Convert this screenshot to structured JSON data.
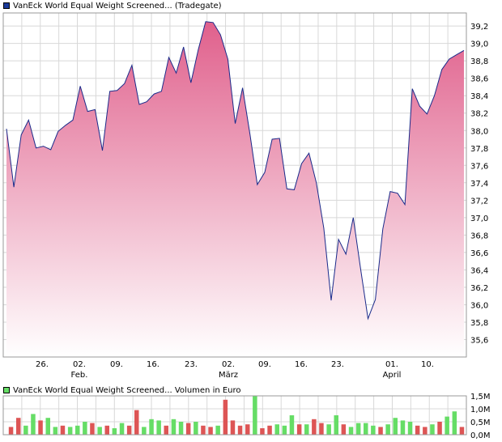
{
  "chart_data": [
    {
      "type": "area",
      "title": "VanEck World Equal Weight Screened... (Tradegate)",
      "series_color": "#1a2a8a",
      "fill_top": "#e0608c",
      "fill_bottom": "#ffffff",
      "ylim": [
        35.4,
        39.35
      ],
      "yticks": [
        "35,6",
        "35,8",
        "36,0",
        "36,2",
        "36,4",
        "36,6",
        "36,8",
        "37,0",
        "37,2",
        "37,4",
        "37,6",
        "37,8",
        "38,0",
        "38,2",
        "38,4",
        "38,6",
        "38,8",
        "39,0",
        "39,2"
      ],
      "xticks": [
        {
          "day": "26.",
          "month": ""
        },
        {
          "day": "02.",
          "month": "Feb."
        },
        {
          "day": "09.",
          "month": ""
        },
        {
          "day": "16.",
          "month": ""
        },
        {
          "day": "23.",
          "month": ""
        },
        {
          "day": "02.",
          "month": "März"
        },
        {
          "day": "09.",
          "month": ""
        },
        {
          "day": "16.",
          "month": ""
        },
        {
          "day": "23.",
          "month": ""
        },
        {
          "day": "01.",
          "month": "April"
        },
        {
          "day": "10.",
          "month": ""
        }
      ],
      "values": [
        38.02,
        37.35,
        37.95,
        38.12,
        37.8,
        37.82,
        37.78,
        37.99,
        38.06,
        38.12,
        38.51,
        38.22,
        38.24,
        37.77,
        38.45,
        38.46,
        38.54,
        38.75,
        38.3,
        38.33,
        38.42,
        38.45,
        38.84,
        38.66,
        38.96,
        38.55,
        38.93,
        39.25,
        39.24,
        39.1,
        38.82,
        38.08,
        38.49,
        37.96,
        37.38,
        37.52,
        37.9,
        37.91,
        37.33,
        37.32,
        37.62,
        37.74,
        37.4,
        36.88,
        36.05,
        36.75,
        36.58,
        37.0,
        36.41,
        35.84,
        36.06,
        36.87,
        37.3,
        37.28,
        37.15,
        38.48,
        38.28,
        38.19,
        38.4,
        38.7,
        38.82,
        38.87,
        38.92
      ]
    },
    {
      "type": "bar",
      "title": "VanEck World Equal Weight Screened... Volumen in Euro",
      "ylim": [
        0,
        1.5
      ],
      "yticks": [
        "0,0M",
        "0,5M",
        "1,0M",
        "1,5M"
      ],
      "up_color": "#66dd66",
      "down_color": "#dd5555",
      "values": [
        0.3,
        0.65,
        0.35,
        0.8,
        0.55,
        0.65,
        0.3,
        0.35,
        0.3,
        0.35,
        0.5,
        0.45,
        0.3,
        0.35,
        0.25,
        0.45,
        0.35,
        0.95,
        0.3,
        0.6,
        0.55,
        0.35,
        0.6,
        0.5,
        0.45,
        0.5,
        0.35,
        0.3,
        0.35,
        1.35,
        0.55,
        0.35,
        0.4,
        1.5,
        0.25,
        0.35,
        0.4,
        0.35,
        0.75,
        0.4,
        0.4,
        0.6,
        0.45,
        0.4,
        0.75,
        0.4,
        0.3,
        0.45,
        0.45,
        0.35,
        0.3,
        0.4,
        0.65,
        0.55,
        0.5,
        0.35,
        0.3,
        0.4,
        0.5,
        0.7,
        0.9,
        0.3
      ],
      "colors": [
        "down",
        "down",
        "up",
        "up",
        "down",
        "up",
        "up",
        "down",
        "up",
        "up",
        "up",
        "down",
        "up",
        "down",
        "up",
        "up",
        "down",
        "down",
        "up",
        "up",
        "up",
        "down",
        "up",
        "up",
        "down",
        "up",
        "down",
        "down",
        "up",
        "down",
        "down",
        "down",
        "down",
        "up",
        "down",
        "down",
        "up",
        "up",
        "up",
        "down",
        "up",
        "down",
        "down",
        "up",
        "up",
        "down",
        "up",
        "up",
        "up",
        "up",
        "down",
        "up",
        "up",
        "up",
        "up",
        "down",
        "down",
        "up",
        "down",
        "up",
        "up",
        "down"
      ]
    }
  ]
}
